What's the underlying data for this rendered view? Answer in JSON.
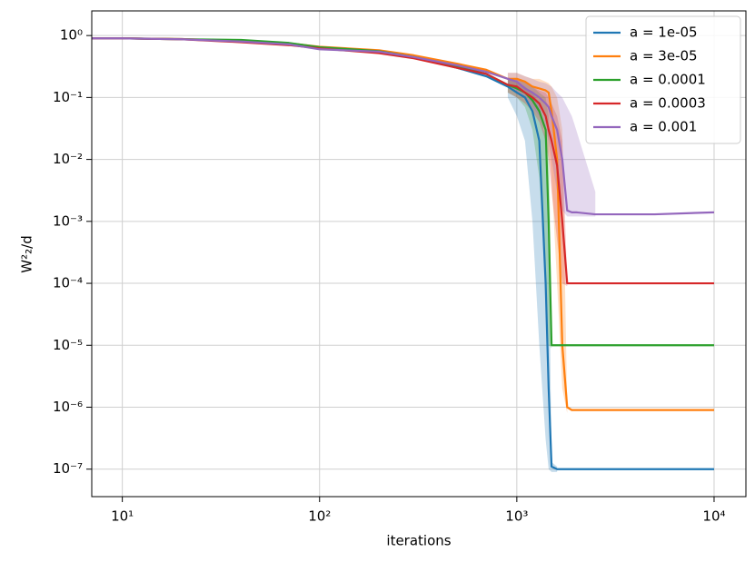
{
  "chart_data": {
    "type": "line",
    "xlabel": "iterations",
    "ylabel": "W²₂/d",
    "xscale": "log",
    "yscale": "log",
    "grid": true,
    "legend": "upper right",
    "xlim": [
      7,
      14500
    ],
    "ylim": [
      3.6e-08,
      2.5
    ],
    "xticks": [
      {
        "value": 10,
        "label": "10¹"
      },
      {
        "value": 100,
        "label": "10²"
      },
      {
        "value": 1000,
        "label": "10³"
      },
      {
        "value": 10000,
        "label": "10⁴"
      }
    ],
    "yticks": [
      {
        "value": 1e-07,
        "label": "10⁻⁷"
      },
      {
        "value": 1e-06,
        "label": "10⁻⁶"
      },
      {
        "value": 1e-05,
        "label": "10⁻⁵"
      },
      {
        "value": 0.0001,
        "label": "10⁻⁴"
      },
      {
        "value": 0.001,
        "label": "10⁻³"
      },
      {
        "value": 0.01,
        "label": "10⁻²"
      },
      {
        "value": 0.1,
        "label": "10⁻¹"
      },
      {
        "value": 1,
        "label": "10⁰"
      }
    ],
    "x": [
      7,
      10,
      20,
      40,
      70,
      100,
      200,
      300,
      500,
      700,
      900,
      1000,
      1100,
      1200,
      1300,
      1400,
      1450,
      1500,
      1600,
      1700,
      1800,
      1900,
      2000,
      2500,
      3000,
      5000,
      10000
    ],
    "series": [
      {
        "name": "a = 1e-05",
        "color": "#1f77b4",
        "values": [
          0.9,
          0.9,
          0.88,
          0.8,
          0.72,
          0.65,
          0.55,
          0.45,
          0.3,
          0.22,
          0.15,
          0.12,
          0.1,
          0.06,
          0.02,
          0.0001,
          2e-06,
          1.1e-07,
          1e-07,
          1e-07,
          1e-07,
          1e-07,
          1e-07,
          1e-07,
          1e-07,
          1e-07,
          1e-07
        ],
        "lower": [
          null,
          null,
          null,
          null,
          null,
          null,
          null,
          null,
          null,
          null,
          0.1,
          0.05,
          0.02,
          0.001,
          1e-05,
          3e-07,
          1e-07,
          9e-08,
          9e-08,
          null,
          null,
          null,
          null,
          null,
          null,
          null,
          null
        ],
        "upper": [
          null,
          null,
          null,
          null,
          null,
          null,
          null,
          null,
          null,
          null,
          0.2,
          0.18,
          0.15,
          0.12,
          0.08,
          0.02,
          0.001,
          1.3e-07,
          1.1e-07,
          null,
          null,
          null,
          null,
          null,
          null,
          null,
          null
        ]
      },
      {
        "name": "a = 3e-05",
        "color": "#ff7f0e",
        "values": [
          0.9,
          0.9,
          0.88,
          0.82,
          0.75,
          0.66,
          0.58,
          0.48,
          0.35,
          0.28,
          0.2,
          0.2,
          0.18,
          0.15,
          0.14,
          0.13,
          0.12,
          0.06,
          0.01,
          1e-05,
          1e-06,
          9e-07,
          9e-07,
          9e-07,
          9e-07,
          9e-07,
          9e-07
        ],
        "lower": [
          null,
          null,
          null,
          null,
          null,
          null,
          null,
          null,
          null,
          null,
          0.15,
          0.15,
          0.12,
          0.1,
          0.08,
          0.05,
          0.02,
          0.005,
          0.0001,
          2e-06,
          8e-07,
          null,
          null,
          null,
          null,
          null,
          null
        ],
        "upper": [
          null,
          null,
          null,
          null,
          null,
          null,
          null,
          null,
          null,
          null,
          0.25,
          0.25,
          0.22,
          0.2,
          0.2,
          0.18,
          0.17,
          0.15,
          0.1,
          0.03,
          1.1e-06,
          null,
          null,
          null,
          null,
          null,
          null
        ]
      },
      {
        "name": "a = 0.0001",
        "color": "#2ca02c",
        "values": [
          0.9,
          0.9,
          0.87,
          0.85,
          0.76,
          0.65,
          0.56,
          0.45,
          0.32,
          0.24,
          0.16,
          0.14,
          0.12,
          0.09,
          0.06,
          0.03,
          0.001,
          1e-05,
          1e-05,
          1e-05,
          1e-05,
          1e-05,
          1e-05,
          1e-05,
          1e-05,
          1e-05,
          1e-05
        ],
        "lower": [
          null,
          null,
          null,
          null,
          null,
          null,
          null,
          null,
          null,
          null,
          0.12,
          0.1,
          0.07,
          0.03,
          0.005,
          0.0001,
          1e-05,
          9e-06,
          null,
          null,
          null,
          null,
          null,
          null,
          null,
          null,
          null
        ],
        "upper": [
          null,
          null,
          null,
          null,
          null,
          null,
          null,
          null,
          null,
          null,
          0.2,
          0.2,
          0.18,
          0.15,
          0.12,
          0.1,
          0.05,
          1.2e-05,
          null,
          null,
          null,
          null,
          null,
          null,
          null,
          null,
          null
        ]
      },
      {
        "name": "a = 0.0003",
        "color": "#d62728",
        "values": [
          0.9,
          0.9,
          0.87,
          0.78,
          0.7,
          0.62,
          0.52,
          0.43,
          0.3,
          0.24,
          0.16,
          0.15,
          0.12,
          0.1,
          0.08,
          0.05,
          0.03,
          0.02,
          0.008,
          0.001,
          0.0001,
          0.0001,
          0.0001,
          0.0001,
          0.0001,
          0.0001,
          0.0001
        ],
        "lower": [
          null,
          null,
          null,
          null,
          null,
          null,
          null,
          null,
          null,
          null,
          0.12,
          0.1,
          0.08,
          0.06,
          0.04,
          0.02,
          0.01,
          0.003,
          0.0005,
          0.0001,
          9e-05,
          null,
          null,
          null,
          null,
          null,
          null
        ],
        "upper": [
          null,
          null,
          null,
          null,
          null,
          null,
          null,
          null,
          null,
          null,
          0.2,
          0.2,
          0.18,
          0.15,
          0.13,
          0.12,
          0.1,
          0.08,
          0.05,
          0.02,
          0.00012,
          null,
          null,
          null,
          null,
          null,
          null
        ]
      },
      {
        "name": "a = 0.001",
        "color": "#9467bd",
        "values": [
          0.9,
          0.9,
          0.87,
          0.8,
          0.72,
          0.6,
          0.55,
          0.45,
          0.33,
          0.26,
          0.2,
          0.18,
          0.14,
          0.12,
          0.1,
          0.08,
          0.07,
          0.05,
          0.03,
          0.01,
          0.0015,
          0.0014,
          0.0014,
          0.0013,
          0.0013,
          0.0013,
          0.0014
        ],
        "lower": [
          null,
          null,
          null,
          null,
          null,
          null,
          null,
          null,
          null,
          null,
          0.15,
          0.12,
          0.1,
          0.07,
          0.05,
          0.03,
          0.02,
          0.01,
          0.003,
          0.0015,
          0.0012,
          0.0012,
          0.0012,
          0.0012,
          null,
          null,
          null
        ],
        "upper": [
          null,
          null,
          null,
          null,
          null,
          null,
          null,
          null,
          null,
          null,
          0.25,
          0.25,
          0.22,
          0.2,
          0.18,
          0.17,
          0.16,
          0.15,
          0.12,
          0.1,
          0.07,
          0.05,
          0.03,
          0.003,
          null,
          null,
          null
        ]
      }
    ]
  }
}
